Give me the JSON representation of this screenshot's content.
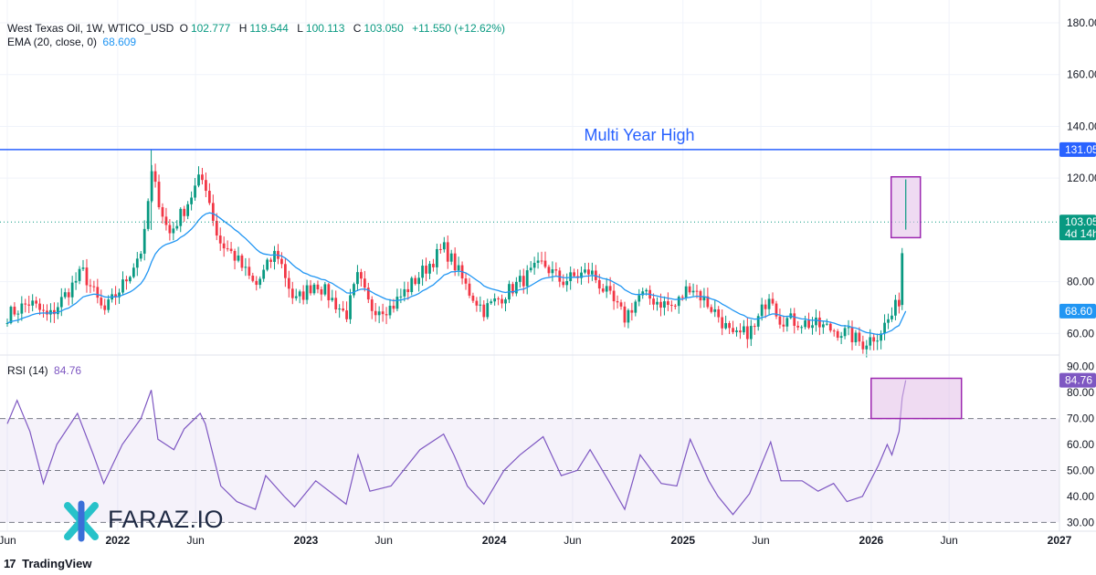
{
  "header": {
    "symbol": "West Texas Oil, 1W, WTICO_USD",
    "o_label": "O",
    "o": "102.777",
    "h_label": "H",
    "h": "119.544",
    "l_label": "L",
    "l": "100.113",
    "c_label": "C",
    "c": "103.050",
    "change": "+11.550 (+12.62%)"
  },
  "ema_legend": {
    "label": "EMA (20, close, 0)",
    "value": "68.609"
  },
  "rsi_legend": {
    "label": "RSI (14)",
    "value": "84.76"
  },
  "footer": {
    "logo": "17",
    "brand": "TradingView"
  },
  "watermark": {
    "text": "FARAZ.IO"
  },
  "colors": {
    "up": "#089981",
    "down": "#f23645",
    "ema": "#2196f3",
    "rsi": "#7e57c2",
    "hline": "#2962ff",
    "box": "#9c27b0",
    "box_fill": "#e1bee7"
  },
  "chart_data": [
    {
      "type": "candlestick",
      "title": "",
      "annotation": "Multi Year High",
      "ylim": [
        52,
        186
      ],
      "y_ticks": [
        "180.00",
        "160.00",
        "140.00",
        "120.00",
        "80.00",
        "60.00"
      ],
      "price_labels": [
        {
          "name": "multi-year-high",
          "text": "131.05",
          "value": 131.05
        },
        {
          "name": "last-price",
          "text": "103.05",
          "sub": "4d 14h",
          "value": 103.05
        },
        {
          "name": "ema",
          "text": "68.60",
          "value": 68.61
        }
      ],
      "x_labels": [
        "Jun",
        "2022",
        "Jun",
        "2023",
        "Jun",
        "2024",
        "Jun",
        "2025",
        "Jun",
        "2026",
        "Jun",
        "2027"
      ],
      "x_label_dates": [
        "2021-06-01",
        "2022-01-01",
        "2022-06-01",
        "2023-01-01",
        "2023-06-01",
        "2024-01-01",
        "2024-06-01",
        "2025-01-01",
        "2025-06-01",
        "2026-01-01",
        "2026-06-01",
        "2027-01-01"
      ],
      "x_range": [
        "2021-06-01",
        "2027-01-01"
      ],
      "series_close_keypoints": [
        [
          "2021-06-01",
          67
        ],
        [
          "2021-07-15",
          72
        ],
        [
          "2021-08-20",
          66
        ],
        [
          "2021-10-25",
          84
        ],
        [
          "2021-12-05",
          68
        ],
        [
          "2022-01-15",
          80
        ],
        [
          "2022-02-20",
          94
        ],
        [
          "2022-03-07",
          122
        ],
        [
          "2022-04-10",
          98
        ],
        [
          "2022-05-10",
          108
        ],
        [
          "2022-06-10",
          120
        ],
        [
          "2022-06-20",
          118
        ],
        [
          "2022-07-15",
          96
        ],
        [
          "2022-08-15",
          90
        ],
        [
          "2022-09-25",
          78
        ],
        [
          "2022-11-05",
          92
        ],
        [
          "2022-12-10",
          72
        ],
        [
          "2023-01-20",
          80
        ],
        [
          "2023-03-20",
          67
        ],
        [
          "2023-04-12",
          82
        ],
        [
          "2023-05-05",
          70
        ],
        [
          "2023-06-15",
          70
        ],
        [
          "2023-07-20",
          78
        ],
        [
          "2023-09-25",
          93
        ],
        [
          "2023-10-15",
          87
        ],
        [
          "2023-11-10",
          77
        ],
        [
          "2023-12-12",
          69
        ],
        [
          "2024-01-20",
          75
        ],
        [
          "2024-04-05",
          87
        ],
        [
          "2024-05-10",
          80
        ],
        [
          "2024-07-05",
          84
        ],
        [
          "2024-09-10",
          66
        ],
        [
          "2024-10-10",
          75
        ],
        [
          "2024-12-15",
          70
        ],
        [
          "2025-01-15",
          79
        ],
        [
          "2025-03-10",
          67
        ],
        [
          "2025-04-08",
          58
        ],
        [
          "2025-05-20",
          62
        ],
        [
          "2025-06-20",
          77
        ],
        [
          "2025-07-05",
          66
        ],
        [
          "2025-09-20",
          63
        ],
        [
          "2025-11-15",
          60
        ],
        [
          "2025-12-15",
          56
        ],
        [
          "2026-01-15",
          60
        ],
        [
          "2026-02-10",
          67
        ],
        [
          "2026-02-24",
          73
        ],
        [
          "2026-03-02",
          91
        ],
        [
          "2026-03-09",
          103.05
        ]
      ],
      "multi_year_high": 131.05,
      "last_price": 103.05,
      "ema_last": 68.609
    },
    {
      "type": "line",
      "title": "",
      "ylim": [
        28,
        92
      ],
      "y_ticks": [
        "90.00",
        "80.00",
        "70.00",
        "60.00",
        "50.00",
        "40.00",
        "30.00"
      ],
      "bands": {
        "upper": 70,
        "middle": 50,
        "lower": 30
      },
      "last_value": 84.76,
      "last_label": "84.76",
      "series": [
        {
          "name": "RSI (14)",
          "points": [
            [
              "2021-06-01",
              68
            ],
            [
              "2021-06-20",
              77
            ],
            [
              "2021-07-15",
              65
            ],
            [
              "2021-08-10",
              45
            ],
            [
              "2021-09-05",
              60
            ],
            [
              "2021-10-15",
              72
            ],
            [
              "2021-11-15",
              56
            ],
            [
              "2021-12-05",
              45
            ],
            [
              "2022-01-10",
              60
            ],
            [
              "2022-02-15",
              70
            ],
            [
              "2022-03-07",
              81
            ],
            [
              "2022-03-20",
              62
            ],
            [
              "2022-04-20",
              58
            ],
            [
              "2022-05-10",
              66
            ],
            [
              "2022-06-10",
              72
            ],
            [
              "2022-06-20",
              68
            ],
            [
              "2022-07-20",
              44
            ],
            [
              "2022-08-20",
              38
            ],
            [
              "2022-09-25",
              35
            ],
            [
              "2022-10-15",
              48
            ],
            [
              "2022-11-20",
              40
            ],
            [
              "2022-12-10",
              36
            ],
            [
              "2023-01-20",
              46
            ],
            [
              "2023-03-20",
              37
            ],
            [
              "2023-04-12",
              56
            ],
            [
              "2023-05-05",
              42
            ],
            [
              "2023-06-15",
              44
            ],
            [
              "2023-08-10",
              58
            ],
            [
              "2023-09-25",
              64
            ],
            [
              "2023-10-15",
              56
            ],
            [
              "2023-11-10",
              44
            ],
            [
              "2023-12-12",
              37
            ],
            [
              "2024-01-20",
              50
            ],
            [
              "2024-02-20",
              56
            ],
            [
              "2024-04-05",
              63
            ],
            [
              "2024-05-10",
              48
            ],
            [
              "2024-06-10",
              50
            ],
            [
              "2024-07-05",
              58
            ],
            [
              "2024-08-10",
              46
            ],
            [
              "2024-09-10",
              35
            ],
            [
              "2024-10-10",
              56
            ],
            [
              "2024-11-20",
              45
            ],
            [
              "2024-12-20",
              44
            ],
            [
              "2025-01-15",
              62
            ],
            [
              "2025-02-20",
              46
            ],
            [
              "2025-03-10",
              40
            ],
            [
              "2025-04-08",
              33
            ],
            [
              "2025-05-10",
              41
            ],
            [
              "2025-06-20",
              61
            ],
            [
              "2025-07-10",
              46
            ],
            [
              "2025-08-20",
              46
            ],
            [
              "2025-09-20",
              42
            ],
            [
              "2025-10-20",
              45
            ],
            [
              "2025-11-15",
              38
            ],
            [
              "2025-12-15",
              40
            ],
            [
              "2026-01-15",
              52
            ],
            [
              "2026-02-01",
              60
            ],
            [
              "2026-02-10",
              56
            ],
            [
              "2026-02-24",
              65
            ],
            [
              "2026-03-02",
              78
            ],
            [
              "2026-03-09",
              84.76
            ]
          ]
        }
      ]
    }
  ]
}
